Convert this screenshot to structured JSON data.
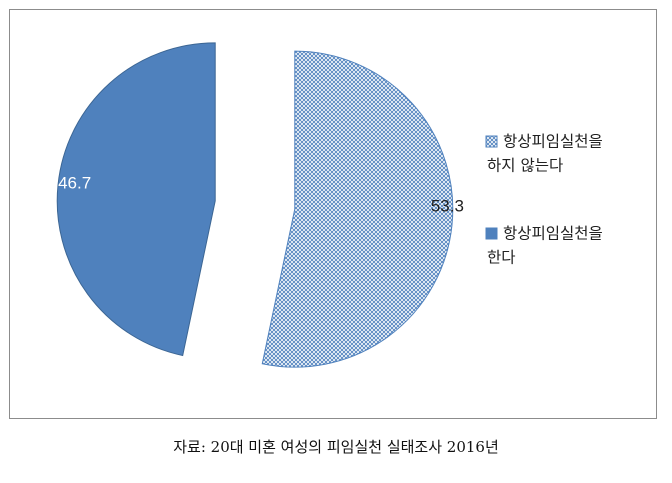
{
  "chart_data": {
    "type": "pie",
    "slices": [
      {
        "label_lines": [
          "항상피임실천을",
          "하지 않는다"
        ],
        "value": 53.3,
        "value_label": "53.3",
        "color": "#4f81bd",
        "fill": "crosshatch"
      },
      {
        "label_lines": [
          "항상피임실천을",
          "한다"
        ],
        "value": 46.7,
        "value_label": "46.7",
        "color": "#4f81bd",
        "fill": "solid"
      }
    ],
    "exploded": true,
    "start_angle_deg": 0,
    "legend_position": "right"
  },
  "caption": "자료: 20대 미혼 여성의 피임실천 실태조사 2016년"
}
